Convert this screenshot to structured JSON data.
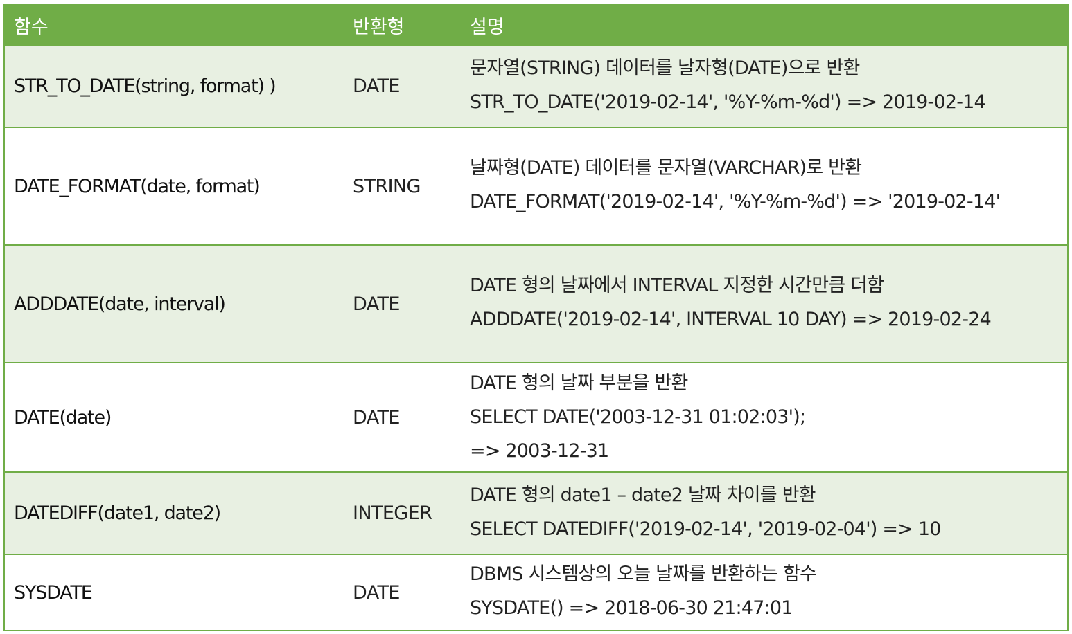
{
  "header": {
    "col_function": "함수",
    "col_return": "반환형",
    "col_desc": "설명"
  },
  "rows": [
    {
      "function": "STR_TO_DATE(string, format) )",
      "return_type": "DATE",
      "desc": [
        "문자열(STRING) 데이터를 날자형(DATE)으로 반환",
        "STR_TO_DATE('2019-02-14', '%Y-%m-%d') => 2019-02-14"
      ]
    },
    {
      "function": "DATE_FORMAT(date, format)",
      "return_type": "STRING",
      "desc": [
        "날짜형(DATE) 데이터를 문자열(VARCHAR)로 반환",
        "DATE_FORMAT('2019-02-14', '%Y-%m-%d') => '2019-02-14'"
      ]
    },
    {
      "function": "ADDDATE(date, interval)",
      "return_type": "DATE",
      "desc": [
        "DATE 형의 날짜에서 INTERVAL 지정한 시간만큼 더함",
        "ADDDATE('2019-02-14', INTERVAL 10 DAY) => 2019-02-24"
      ]
    },
    {
      "function": "DATE(date)",
      "return_type": "DATE",
      "desc": [
        "DATE 형의 날짜 부분을 반환",
        "SELECT DATE('2003-12-31 01:02:03');",
        "=> 2003-12-31"
      ]
    },
    {
      "function": "DATEDIFF(date1, date2)",
      "return_type": "INTEGER",
      "desc": [
        "DATE 형의 date1 – date2 날짜 차이를 반환",
        "SELECT DATEDIFF('2019-02-14', '2019-02-04') => 10"
      ]
    },
    {
      "function": "SYSDATE",
      "return_type": "DATE",
      "desc": [
        "DBMS 시스템상의 오늘 날짜를 반환하는 함수",
        "SYSDATE() => 2018-06-30 21:47:01"
      ]
    }
  ],
  "colors": {
    "header_bg": "#70ad47",
    "alt_row_bg": "#e8f0e2",
    "border": "#70ad47"
  }
}
